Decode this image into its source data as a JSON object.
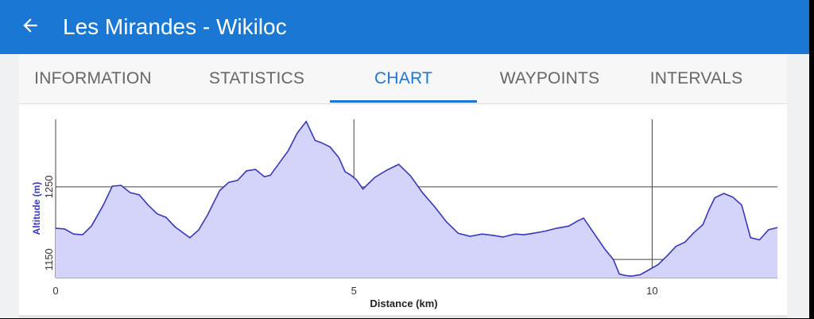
{
  "header": {
    "title": "Les Mirandes - Wikiloc",
    "back_icon": "arrow-left-icon"
  },
  "tabs": [
    {
      "label": "INFORMATION",
      "active": false
    },
    {
      "label": "STATISTICS",
      "active": false
    },
    {
      "label": "CHART",
      "active": true
    },
    {
      "label": "WAYPOINTS",
      "active": false
    },
    {
      "label": "INTERVALS",
      "active": false
    }
  ],
  "colors": {
    "appbar": "#1a78d4",
    "accent": "#1a78d4",
    "fill": "#d4d4fb",
    "line": "#3838b8",
    "axis_label": "#3a3ac8"
  },
  "chart_data": {
    "type": "area",
    "xlabel": "Distance (km)",
    "ylabel": "Altitude (m)",
    "xlim": [
      0,
      12.1
    ],
    "ylim": [
      1125,
      1343
    ],
    "x_ticks": [
      0,
      5,
      10
    ],
    "y_ticks": [
      1150,
      1250
    ],
    "grid": true,
    "series": [
      {
        "x": [
          0,
          0.15,
          0.3,
          0.45,
          0.6,
          0.8,
          0.95,
          1.1,
          1.25,
          1.4,
          1.55,
          1.7,
          1.85,
          2.0,
          2.1,
          2.25,
          2.4,
          2.55,
          2.75,
          2.9,
          3.05,
          3.2,
          3.35,
          3.5,
          3.6,
          3.75,
          3.9,
          4.05,
          4.2,
          4.35,
          4.45,
          4.6,
          4.75,
          4.85,
          4.95,
          5.05,
          5.15,
          5.35,
          5.55,
          5.75,
          5.95,
          6.15,
          6.35,
          6.55,
          6.75,
          6.95,
          7.15,
          7.35,
          7.5,
          7.7,
          7.85,
          8.0,
          8.2,
          8.4,
          8.6,
          8.75,
          8.85,
          9.0,
          9.2,
          9.35,
          9.45,
          9.55,
          9.65,
          9.8,
          9.95,
          10.1,
          10.25,
          10.4,
          10.55,
          10.7,
          10.85,
          10.95,
          11.05,
          11.2,
          11.35,
          11.5,
          11.65,
          11.8,
          11.95,
          12.1
        ],
        "y": [
          1193,
          1192,
          1185,
          1184,
          1196,
          1225,
          1251,
          1252,
          1242,
          1239,
          1225,
          1213,
          1208,
          1195,
          1189,
          1180,
          1191,
          1212,
          1245,
          1256,
          1259,
          1272,
          1274,
          1264,
          1266,
          1283,
          1300,
          1324,
          1340,
          1314,
          1311,
          1305,
          1290,
          1271,
          1266,
          1259,
          1247,
          1263,
          1273,
          1281,
          1265,
          1242,
          1223,
          1202,
          1186,
          1182,
          1185,
          1183,
          1181,
          1185,
          1184,
          1186,
          1189,
          1193,
          1196,
          1203,
          1207,
          1189,
          1165,
          1150,
          1130,
          1128,
          1127,
          1129,
          1136,
          1143,
          1155,
          1168,
          1174,
          1187,
          1198,
          1218,
          1235,
          1241,
          1236,
          1225,
          1180,
          1177,
          1191,
          1194
        ]
      }
    ]
  }
}
